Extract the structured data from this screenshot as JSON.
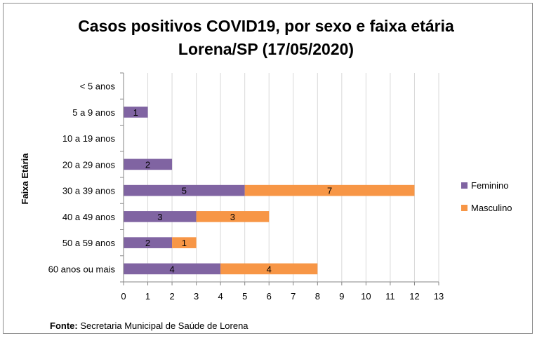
{
  "chart_data": {
    "type": "bar",
    "orientation": "horizontal",
    "stacked": true,
    "title": [
      "Casos positivos COVID19, por sexo e faixa etária",
      "Lorena/SP (17/05/2020)"
    ],
    "ylabel": "Faixa Etária",
    "xlabel": "",
    "xlim": [
      0,
      13
    ],
    "xticks": [
      0,
      1,
      2,
      3,
      4,
      5,
      6,
      7,
      8,
      9,
      10,
      11,
      12,
      13
    ],
    "grid": "vertical",
    "legend_position": "right",
    "categories": [
      "< 5 anos",
      "5 a 9 anos",
      "10 a 19 anos",
      "20 a 29 anos",
      "30 a 39 anos",
      "40 a 49 anos",
      "50 a 59 anos",
      "60 anos ou mais"
    ],
    "series": [
      {
        "name": "Feminino",
        "color": "#8064a2",
        "values": [
          0,
          1,
          0,
          2,
          5,
          3,
          2,
          4
        ]
      },
      {
        "name": "Masculino",
        "color": "#f79646",
        "values": [
          0,
          0,
          0,
          0,
          7,
          3,
          1,
          4
        ]
      }
    ]
  },
  "source": {
    "label": "Fonte:",
    "text": " Secretaria Municipal de Saúde de Lorena"
  }
}
